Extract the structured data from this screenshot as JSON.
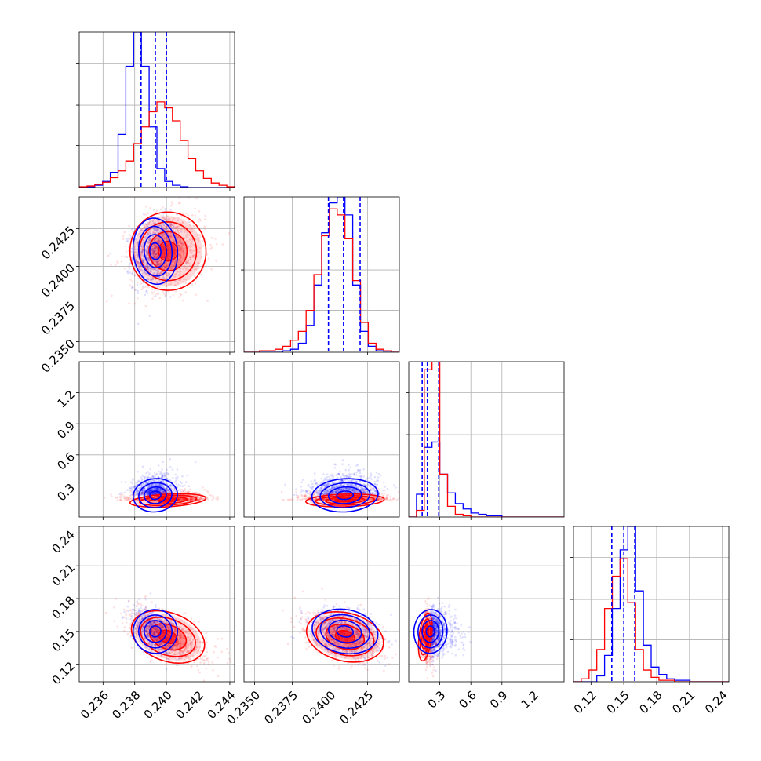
{
  "chart_data": {
    "type": "corner",
    "colors": {
      "series_a": "#0000ff",
      "series_b": "#ff0000"
    },
    "grid": true,
    "parameters": [
      {
        "range": [
          0.2345,
          0.2443
        ],
        "ticks": [
          0.236,
          0.238,
          0.24,
          0.242,
          0.244
        ],
        "tick_labels": [
          "0.236",
          "0.238",
          "0.240",
          "0.242",
          "0.244"
        ],
        "quantiles_a": [
          0.2384,
          0.2393,
          0.24
        ]
      },
      {
        "range": [
          0.2343,
          0.2446
        ],
        "ticks": [
          0.235,
          0.2375,
          0.24,
          0.2425
        ],
        "tick_labels": [
          "0.2350",
          "0.2375",
          "0.2400",
          "0.2425"
        ],
        "quantiles_a": [
          0.2399,
          0.2409,
          0.242
        ]
      },
      {
        "range": [
          0.0,
          1.5
        ],
        "ticks": [
          0.3,
          0.6,
          0.9,
          1.2
        ],
        "tick_labels": [
          "0.3",
          "0.6",
          "0.9",
          "1.2"
        ],
        "quantiles_a": [
          0.13,
          0.18,
          0.29
        ]
      },
      {
        "range": [
          0.104,
          0.246
        ],
        "ticks": [
          0.12,
          0.15,
          0.18,
          0.21,
          0.24
        ],
        "tick_labels": [
          "0.12",
          "0.15",
          "0.18",
          "0.21",
          "0.24"
        ],
        "quantiles_a": [
          0.139,
          0.15,
          0.16
        ]
      }
    ],
    "hist_bins": 20,
    "histograms": [
      {
        "a": [
          0,
          1,
          3,
          8,
          20,
          70,
          160,
          205,
          160,
          80,
          25,
          8,
          3,
          1,
          0,
          0,
          0,
          0,
          0,
          0
        ],
        "b": [
          1,
          2,
          4,
          7,
          13,
          22,
          35,
          58,
          80,
          100,
          113,
          105,
          88,
          62,
          38,
          22,
          12,
          6,
          3,
          1
        ]
      },
      {
        "a": [
          0,
          0,
          0,
          0,
          0,
          1,
          2,
          6,
          18,
          45,
          80,
          100,
          104,
          92,
          45,
          14,
          4,
          1,
          0,
          0
        ],
        "b": [
          0,
          0,
          1,
          1,
          2,
          4,
          8,
          14,
          28,
          52,
          78,
          96,
          92,
          76,
          48,
          20,
          6,
          2,
          1,
          0
        ],
        "skip_first_bins": 0
      },
      {
        "a": [
          0,
          17,
          52,
          56,
          32,
          18,
          10,
          6,
          3,
          2,
          1,
          1,
          0,
          0,
          0,
          0,
          0,
          0,
          0,
          0
        ],
        "b": [
          0,
          5,
          110,
          116,
          32,
          8,
          2,
          1,
          0,
          0,
          0,
          0,
          0,
          0,
          0,
          0,
          0,
          0,
          0,
          0
        ]
      },
      {
        "a": [
          0,
          0,
          0,
          4,
          18,
          50,
          90,
          106,
          62,
          25,
          10,
          5,
          2,
          1,
          1,
          0,
          0,
          0,
          0,
          0
        ],
        "b": [
          0,
          2,
          8,
          22,
          50,
          72,
          84,
          54,
          22,
          8,
          3,
          1,
          1,
          0,
          0,
          0,
          0,
          0,
          0,
          0
        ]
      }
    ],
    "correlations": {
      "a": [
        [
          1,
          0.15,
          0.2,
          -0.5
        ],
        [
          0.15,
          1,
          0.1,
          -0.3
        ],
        [
          0.2,
          0.1,
          1,
          -0.1
        ],
        [
          -0.5,
          -0.3,
          -0.1,
          1
        ]
      ],
      "b": [
        [
          1,
          0.15,
          0.1,
          -0.6
        ],
        [
          0.15,
          1,
          0.05,
          -0.4
        ],
        [
          0.1,
          0.05,
          1,
          -0.2
        ],
        [
          -0.6,
          -0.4,
          -0.2,
          1
        ]
      ]
    },
    "distributions": {
      "a": {
        "means": [
          0.2393,
          0.241,
          0.21,
          0.15
        ],
        "sds": [
          0.0007,
          0.0011,
          0.08,
          0.01
        ]
      },
      "b": {
        "means": [
          0.2401,
          0.241,
          0.16,
          0.145
        ],
        "sds": [
          0.0012,
          0.0013,
          0.03,
          0.011
        ]
      }
    }
  }
}
